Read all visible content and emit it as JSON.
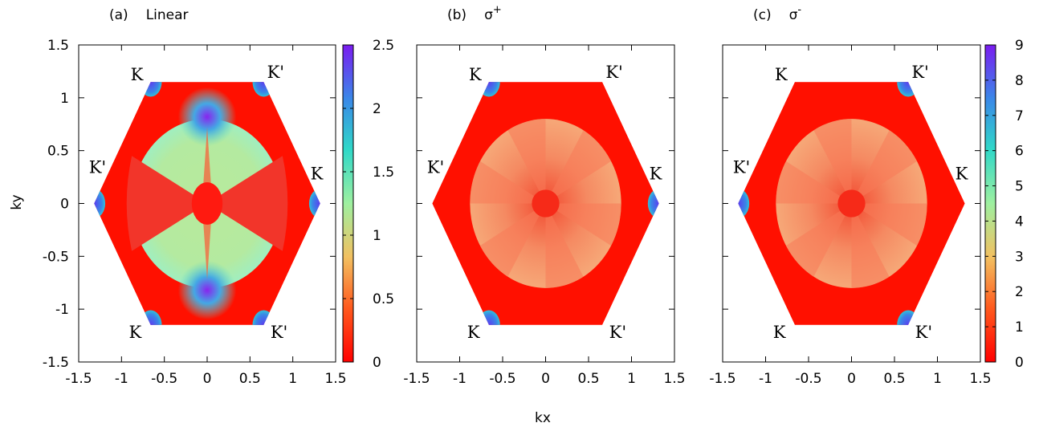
{
  "figure": {
    "xlabel": "kx",
    "ylabel": "ky"
  },
  "chart_data": [
    {
      "type": "heatmap",
      "title_tag": "(a)",
      "title": "Linear",
      "title_sup": "",
      "xlim": [
        -1.5,
        1.5
      ],
      "ylim": [
        -1.5,
        1.5
      ],
      "x_ticks": [
        "-1.5",
        "-1",
        "-0.5",
        "0",
        "0.5",
        "1",
        "1.5"
      ],
      "y_ticks": [
        "1.5",
        "1",
        "0.5",
        "0",
        "-0.5",
        "-1",
        "-1.5"
      ],
      "colorbar": {
        "range": [
          0,
          2.5
        ],
        "ticks": [
          "2.5",
          "2",
          "1.5",
          "1",
          "0.5",
          "0"
        ]
      },
      "valley_labels": [
        {
          "text": "K",
          "kx": -0.82,
          "ky": 1.22
        },
        {
          "text": "K'",
          "kx": 0.8,
          "ky": 1.24
        },
        {
          "text": "K'",
          "kx": -1.28,
          "ky": 0.34
        },
        {
          "text": "K",
          "kx": 1.28,
          "ky": 0.28
        },
        {
          "text": "K",
          "kx": -0.84,
          "ky": -1.22
        },
        {
          "text": "K'",
          "kx": 0.84,
          "ky": -1.22
        }
      ]
    },
    {
      "type": "heatmap",
      "title_tag": "(b)",
      "title": "σ",
      "title_sup": "+",
      "xlim": [
        -1.5,
        1.5
      ],
      "ylim": [
        -1.5,
        1.5
      ],
      "x_ticks": [
        "-1.5",
        "-1",
        "-0.5",
        "0",
        "0.5",
        "1",
        "1.5"
      ],
      "y_ticks": [],
      "colorbar": null,
      "valley_labels": [
        {
          "text": "K",
          "kx": -0.82,
          "ky": 1.22
        },
        {
          "text": "K'",
          "kx": 0.8,
          "ky": 1.24
        },
        {
          "text": "K'",
          "kx": -1.28,
          "ky": 0.34
        },
        {
          "text": "K",
          "kx": 1.28,
          "ky": 0.28
        },
        {
          "text": "K",
          "kx": -0.84,
          "ky": -1.22
        },
        {
          "text": "K'",
          "kx": 0.84,
          "ky": -1.22
        }
      ]
    },
    {
      "type": "heatmap",
      "title_tag": "(c)",
      "title": "σ",
      "title_sup": "-",
      "xlim": [
        -1.5,
        1.5
      ],
      "ylim": [
        -1.5,
        1.5
      ],
      "x_ticks": [
        "-1.5",
        "-1",
        "-0.5",
        "0",
        "0.5",
        "1",
        "1.5"
      ],
      "y_ticks": [],
      "colorbar": {
        "range": [
          0,
          9
        ],
        "ticks": [
          "9",
          "8",
          "7",
          "6",
          "5",
          "4",
          "3",
          "2",
          "1",
          "0"
        ]
      },
      "valley_labels": [
        {
          "text": "K",
          "kx": -0.82,
          "ky": 1.22
        },
        {
          "text": "K'",
          "kx": 0.8,
          "ky": 1.24
        },
        {
          "text": "K'",
          "kx": -1.28,
          "ky": 0.34
        },
        {
          "text": "K",
          "kx": 1.28,
          "ky": 0.28
        },
        {
          "text": "K",
          "kx": -0.84,
          "ky": -1.22
        },
        {
          "text": "K'",
          "kx": 0.84,
          "ky": -1.22
        }
      ]
    }
  ]
}
